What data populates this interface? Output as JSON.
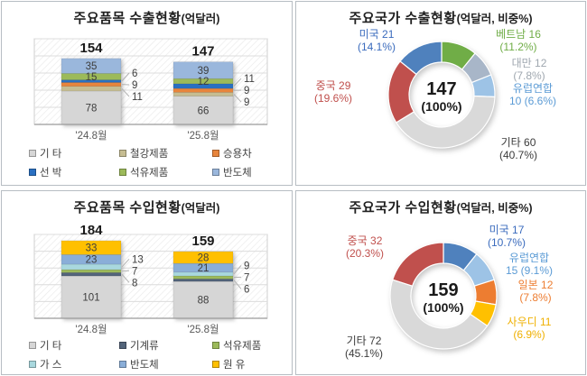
{
  "panels": [
    {
      "title": "주요품목 수출현황",
      "unit": "(억달러)"
    },
    {
      "title": "주요국가 수출현황",
      "unit": "(억달러, 비중%)"
    },
    {
      "title": "주요품목 수입현황",
      "unit": "(억달러)"
    },
    {
      "title": "주요국가 수입현황",
      "unit": "(억달러, 비중%)"
    }
  ],
  "chart_data": [
    {
      "type": "bar",
      "variant": "stacked-column",
      "title": "주요품목 수출현황(억달러)",
      "categories": [
        "'24.8월",
        "'25.8월"
      ],
      "totals": [
        154,
        147
      ],
      "ylim": [
        0,
        200
      ],
      "grid_interval": 40,
      "legend_position": "bottom",
      "series": [
        {
          "name": "기 타",
          "color": "#d6d6d6",
          "values": [
            78,
            66
          ],
          "label": "inside"
        },
        {
          "name": "철강제품",
          "color": "#c6bd92",
          "values": [
            11,
            9
          ],
          "label": "callout"
        },
        {
          "name": "승용차",
          "color": "#e8853c",
          "values": [
            9,
            9
          ],
          "label": "callout"
        },
        {
          "name": "선 박",
          "color": "#2a70c2",
          "values": [
            6,
            11
          ],
          "label": "callout"
        },
        {
          "name": "석유제품",
          "color": "#9cba5a",
          "values": [
            15,
            12
          ],
          "label": "inside"
        },
        {
          "name": "반도체",
          "color": "#9ab7dc",
          "values": [
            35,
            39
          ],
          "label": "inside"
        }
      ]
    },
    {
      "type": "pie",
      "variant": "donut",
      "title": "주요국가 수출현황(억달러, 비중%)",
      "center": {
        "value": "147",
        "pct": "(100%)"
      },
      "slices": [
        {
          "name": "베트남",
          "value": 16,
          "pct": "11.2%",
          "color": "#70ad47",
          "label_color": "#70ad47",
          "line1": "베트남 16",
          "line2": "(11.2%)"
        },
        {
          "name": "대만",
          "value": 12,
          "pct": "7.8%",
          "color": "#a8b6c8",
          "label_color": "#9fa7af",
          "line1": "대만 12",
          "line2": "(7.8%)"
        },
        {
          "name": "유럽연합",
          "value": 10,
          "pct": "6.6%",
          "color": "#9dc3e6",
          "label_color": "#5b9bd5",
          "line1": "유럽연합",
          "line2": "10 (6.6%)"
        },
        {
          "name": "기타",
          "value": 60,
          "pct": "40.7%",
          "color": "#d9d9d9",
          "label_color": "#3b3b3b",
          "line1": "기타 60",
          "line2": "(40.7%)"
        },
        {
          "name": "중국",
          "value": 29,
          "pct": "19.6%",
          "color": "#c0504d",
          "label_color": "#c0504d",
          "line1": "중국 29",
          "line2": "(19.6%)"
        },
        {
          "name": "미국",
          "value": 21,
          "pct": "14.1%",
          "color": "#4f81bd",
          "label_color": "#3a6bbd",
          "line1": "미국 21",
          "line2": "(14.1%)"
        }
      ]
    },
    {
      "type": "bar",
      "variant": "stacked-column",
      "title": "주요품목 수입현황(억달러)",
      "categories": [
        "'24.8월",
        "'25.8월"
      ],
      "totals": [
        184,
        159
      ],
      "ylim": [
        0,
        200
      ],
      "grid_interval": 40,
      "legend_position": "bottom",
      "series": [
        {
          "name": "기 타",
          "color": "#d6d6d6",
          "values": [
            101,
            88
          ],
          "label": "inside"
        },
        {
          "name": "기계류",
          "color": "#53647a",
          "values": [
            8,
            6
          ],
          "label": "callout"
        },
        {
          "name": "석유제품",
          "color": "#9cba5a",
          "values": [
            7,
            7
          ],
          "label": "callout"
        },
        {
          "name": "가 스",
          "color": "#a9d8de",
          "values": [
            13,
            9
          ],
          "label": "callout"
        },
        {
          "name": "반도체",
          "color": "#8aaed8",
          "values": [
            23,
            21
          ],
          "label": "inside"
        },
        {
          "name": "원 유",
          "color": "#ffc000",
          "values": [
            33,
            28
          ],
          "label": "inside"
        }
      ]
    },
    {
      "type": "pie",
      "variant": "donut",
      "title": "주요국가 수입현황(억달러, 비중%)",
      "center": {
        "value": "159",
        "pct": "(100%)"
      },
      "slices": [
        {
          "name": "미국",
          "value": 17,
          "pct": "10.7%",
          "color": "#4f81bd",
          "label_color": "#3a6bbd",
          "line1": "미국 17",
          "line2": "(10.7%)"
        },
        {
          "name": "유럽연합",
          "value": 15,
          "pct": "9.1%",
          "color": "#9dc3e6",
          "label_color": "#5b9bd5",
          "line1": "유럽연합",
          "line2": "15 (9.1%)"
        },
        {
          "name": "일본",
          "value": 12,
          "pct": "7.8%",
          "color": "#ed7d31",
          "label_color": "#ed7d31",
          "line1": "일본 12",
          "line2": "(7.8%)"
        },
        {
          "name": "사우디",
          "value": 11,
          "pct": "6.9%",
          "color": "#ffc000",
          "label_color": "#efb000",
          "line1": "사우디 11",
          "line2": "(6.9%)"
        },
        {
          "name": "기타",
          "value": 72,
          "pct": "45.1%",
          "color": "#d9d9d9",
          "label_color": "#3b3b3b",
          "line1": "기타 72",
          "line2": "(45.1%)"
        },
        {
          "name": "중국",
          "value": 32,
          "pct": "20.3%",
          "color": "#c0504d",
          "label_color": "#c0504d",
          "line1": "중국 32",
          "line2": "(20.3%)"
        }
      ]
    }
  ]
}
